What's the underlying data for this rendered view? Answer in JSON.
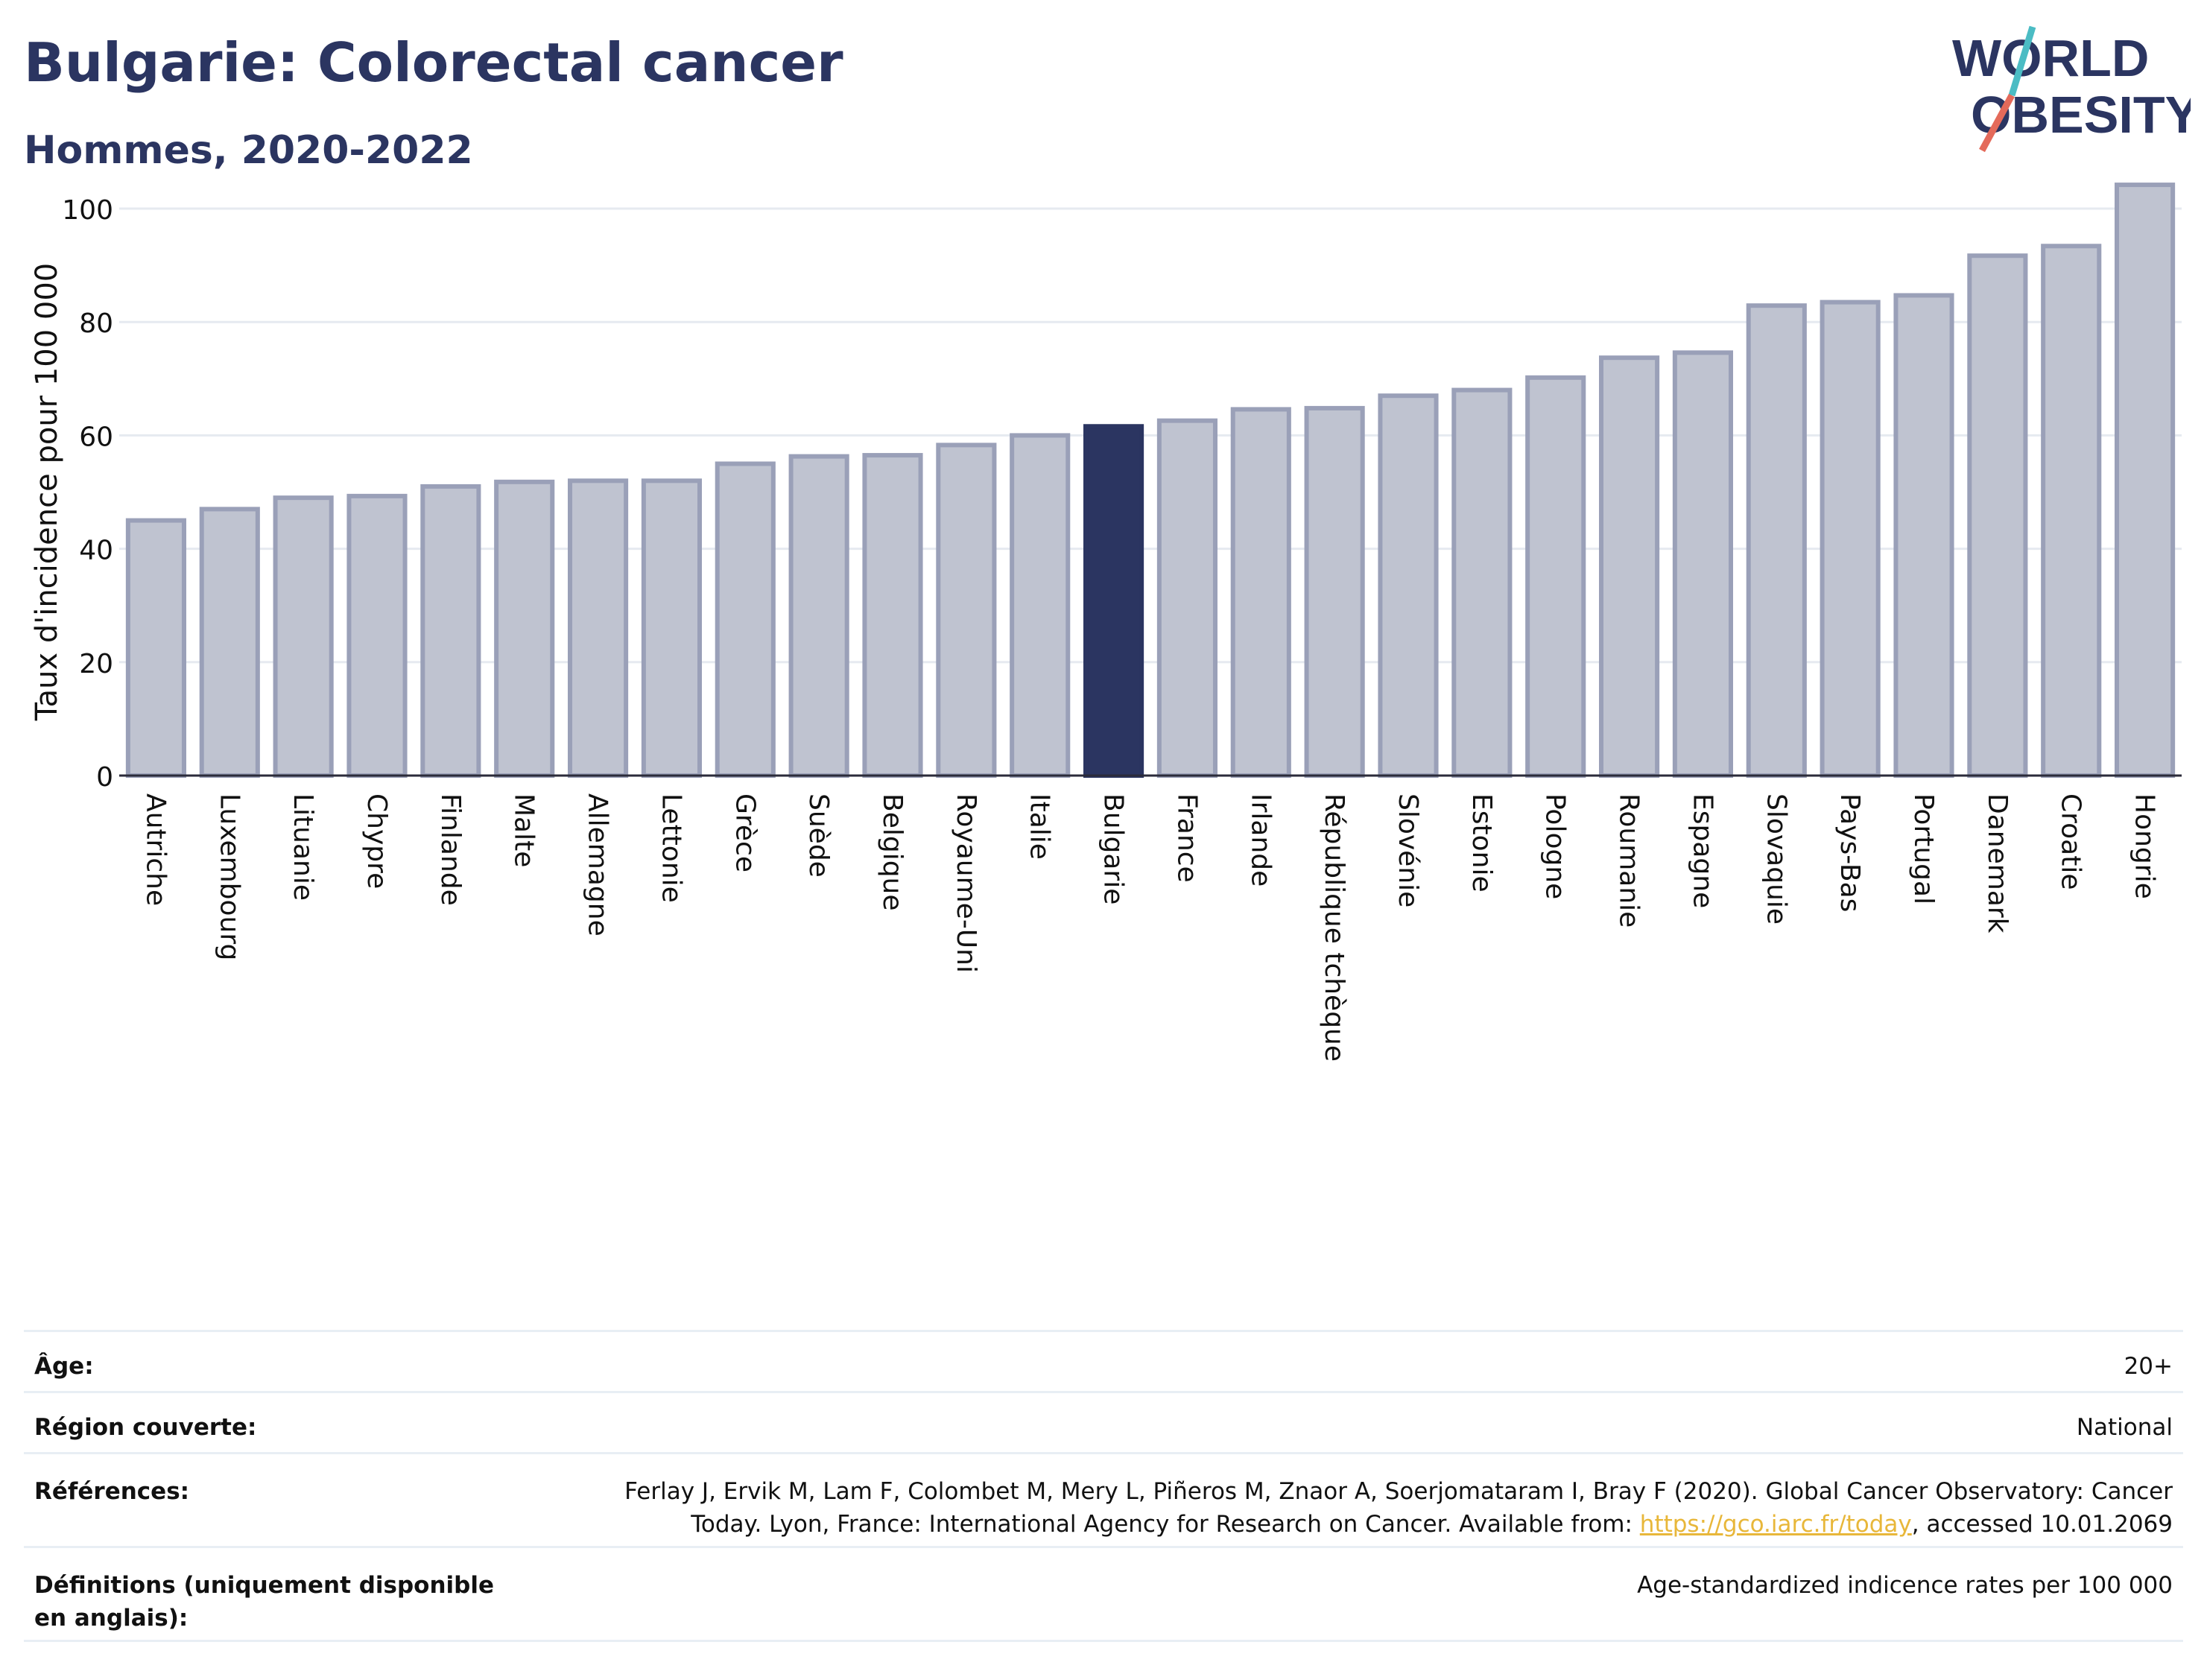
{
  "header": {
    "title": "Bulgarie: Colorectal cancer",
    "subtitle": "Hommes, 2020-2022"
  },
  "logo": {
    "line1": "WORLD",
    "line2": "OBESITY",
    "colors": {
      "text": "#2b3561",
      "slash_red": "#e46a5a",
      "slash_teal": "#4bbcc4"
    }
  },
  "chart_data": {
    "type": "bar",
    "ylabel": "Taux d'incidence pour 100 000",
    "ylim": [
      0,
      105
    ],
    "yticks": [
      0,
      20,
      40,
      60,
      80,
      100
    ],
    "grid": true,
    "highlight": "Bulgarie",
    "colors": {
      "bar": "#bfc3d0",
      "bar_border": "#9aa0b8",
      "highlight": "#2b3561",
      "grid": "#e6eaf0"
    },
    "categories": [
      "Autriche",
      "Luxembourg",
      "Lituanie",
      "Chypre",
      "Finlande",
      "Malte",
      "Allemagne",
      "Lettonie",
      "Grèce",
      "Suède",
      "Belgique",
      "Royaume-Uni",
      "Italie",
      "Bulgarie",
      "France",
      "Irlande",
      "République tchèque",
      "Slovénie",
      "Estonie",
      "Pologne",
      "Roumanie",
      "Espagne",
      "Slovaquie",
      "Pays-Bas",
      "Portugal",
      "Danemark",
      "Croatie",
      "Hongrie"
    ],
    "values": [
      45,
      47,
      49,
      49.3,
      51,
      51.8,
      52,
      52,
      55,
      56.3,
      56.5,
      58.3,
      60,
      61.6,
      62.6,
      64.6,
      64.8,
      67,
      68,
      70.2,
      73.7,
      74.6,
      82.9,
      83.5,
      84.7,
      91.7,
      93.4,
      104.2
    ]
  },
  "info": {
    "age": {
      "label": "Âge:",
      "value": "20+"
    },
    "region": {
      "label": "Région couverte:",
      "value": "National"
    },
    "references": {
      "label": "Références:",
      "text_line1": "Ferlay J, Ervik M, Lam F, Colombet M, Mery L, Piñeros M, Znaor A, Soerjomataram I, Bray F (2020). Global Cancer Observatory: Cancer",
      "text_before_link": "Today. Lyon, France: International Agency for Research on Cancer. Available from: ",
      "link": "https://gco.iarc.fr/today",
      "text_after_link": ", accessed 10.01.2069"
    },
    "definitions": {
      "label": "Définitions (uniquement disponible en anglais):",
      "value": "Age-standardized indicence rates per 100 000"
    }
  }
}
